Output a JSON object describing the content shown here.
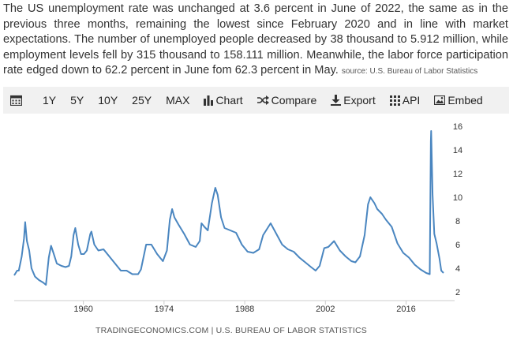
{
  "summary": {
    "text": "The US unemployment rate was unchanged at 3.6 percent in June of 2022, the same as in the previous three months, remaining the lowest since February 2020 and in line with market expectations. The number of unemployed people decreased by 38 thousand to 5.912 million, while employment levels fell by 315 thousand to 158.111 million. Meanwhile, the labor force participation rate edged down to 62.2 percent in June fom 62.3 percent in May.",
    "source": "source: U.S. Bureau of Labor Statistics"
  },
  "toolbar": {
    "calendar_icon": "calendar-icon",
    "ranges": [
      "1Y",
      "5Y",
      "10Y",
      "25Y",
      "MAX"
    ],
    "chart_label": "Chart",
    "compare_label": "Compare",
    "export_label": "Export",
    "api_label": "API",
    "embed_label": "Embed"
  },
  "credit": "TRADINGECONOMICS.COM | U.S. BUREAU OF LABOR STATISTICS",
  "colors": {
    "line": "#4a86c0",
    "axis": "#cccccc",
    "toolbar_bg": "#f1f1f1"
  },
  "chart_data": {
    "type": "line",
    "title": "",
    "xlabel": "",
    "ylabel": "",
    "x_ticks": [
      "1960",
      "1974",
      "1988",
      "2002",
      "2016"
    ],
    "y_ticks": [
      2,
      4,
      6,
      8,
      10,
      12,
      14,
      16
    ],
    "ylim": [
      2,
      16
    ],
    "xlim": [
      1948,
      2022.5
    ],
    "grid": false,
    "y_axis_side": "right",
    "series": [
      {
        "values": [
          [
            1948.0,
            3.4
          ],
          [
            1948.5,
            3.8
          ],
          [
            1948.8,
            3.8
          ],
          [
            1949.3,
            5.0
          ],
          [
            1949.7,
            6.5
          ],
          [
            1949.9,
            7.9
          ],
          [
            1950.2,
            6.3
          ],
          [
            1950.6,
            5.5
          ],
          [
            1951.0,
            4.0
          ],
          [
            1951.6,
            3.3
          ],
          [
            1952.3,
            3.0
          ],
          [
            1953.0,
            2.8
          ],
          [
            1953.5,
            2.6
          ],
          [
            1954.0,
            4.9
          ],
          [
            1954.4,
            5.9
          ],
          [
            1954.8,
            5.3
          ],
          [
            1955.4,
            4.4
          ],
          [
            1956.2,
            4.2
          ],
          [
            1956.9,
            4.1
          ],
          [
            1957.5,
            4.2
          ],
          [
            1957.9,
            5.0
          ],
          [
            1958.3,
            6.8
          ],
          [
            1958.6,
            7.4
          ],
          [
            1959.1,
            6.0
          ],
          [
            1959.6,
            5.2
          ],
          [
            1960.1,
            5.2
          ],
          [
            1960.6,
            5.5
          ],
          [
            1961.2,
            6.9
          ],
          [
            1961.4,
            7.1
          ],
          [
            1961.9,
            6.0
          ],
          [
            1962.6,
            5.5
          ],
          [
            1963.5,
            5.6
          ],
          [
            1964.5,
            5.0
          ],
          [
            1965.5,
            4.4
          ],
          [
            1966.5,
            3.8
          ],
          [
            1967.5,
            3.8
          ],
          [
            1968.5,
            3.5
          ],
          [
            1969.5,
            3.5
          ],
          [
            1970.0,
            3.9
          ],
          [
            1970.9,
            6.0
          ],
          [
            1971.8,
            6.0
          ],
          [
            1972.8,
            5.2
          ],
          [
            1973.8,
            4.6
          ],
          [
            1974.5,
            5.5
          ],
          [
            1975.0,
            8.1
          ],
          [
            1975.4,
            9.0
          ],
          [
            1975.8,
            8.3
          ],
          [
            1976.5,
            7.7
          ],
          [
            1977.5,
            6.9
          ],
          [
            1978.5,
            6.0
          ],
          [
            1979.5,
            5.8
          ],
          [
            1980.2,
            6.3
          ],
          [
            1980.5,
            7.8
          ],
          [
            1981.0,
            7.5
          ],
          [
            1981.6,
            7.2
          ],
          [
            1982.3,
            9.5
          ],
          [
            1982.9,
            10.8
          ],
          [
            1983.3,
            10.2
          ],
          [
            1983.9,
            8.3
          ],
          [
            1984.5,
            7.4
          ],
          [
            1985.5,
            7.2
          ],
          [
            1986.5,
            7.0
          ],
          [
            1987.5,
            6.0
          ],
          [
            1988.5,
            5.4
          ],
          [
            1989.5,
            5.3
          ],
          [
            1990.5,
            5.6
          ],
          [
            1991.2,
            6.8
          ],
          [
            1992.5,
            7.8
          ],
          [
            1993.5,
            6.9
          ],
          [
            1994.5,
            6.0
          ],
          [
            1995.5,
            5.6
          ],
          [
            1996.5,
            5.4
          ],
          [
            1997.5,
            4.9
          ],
          [
            1998.5,
            4.5
          ],
          [
            1999.5,
            4.1
          ],
          [
            2000.3,
            3.8
          ],
          [
            2001.0,
            4.2
          ],
          [
            2001.8,
            5.7
          ],
          [
            2002.5,
            5.8
          ],
          [
            2003.5,
            6.3
          ],
          [
            2004.5,
            5.5
          ],
          [
            2005.5,
            5.0
          ],
          [
            2006.5,
            4.6
          ],
          [
            2007.2,
            4.5
          ],
          [
            2008.0,
            5.0
          ],
          [
            2008.8,
            6.8
          ],
          [
            2009.4,
            9.4
          ],
          [
            2009.8,
            10.0
          ],
          [
            2010.5,
            9.5
          ],
          [
            2011.0,
            9.0
          ],
          [
            2011.8,
            8.6
          ],
          [
            2012.5,
            8.1
          ],
          [
            2013.5,
            7.5
          ],
          [
            2014.5,
            6.1
          ],
          [
            2015.5,
            5.3
          ],
          [
            2016.5,
            4.9
          ],
          [
            2017.5,
            4.3
          ],
          [
            2018.5,
            3.9
          ],
          [
            2019.5,
            3.6
          ],
          [
            2020.1,
            3.5
          ],
          [
            2020.3,
            14.7
          ],
          [
            2020.35,
            15.6
          ],
          [
            2020.6,
            10.2
          ],
          [
            2020.9,
            6.9
          ],
          [
            2021.3,
            6.1
          ],
          [
            2021.8,
            4.8
          ],
          [
            2022.1,
            3.8
          ],
          [
            2022.5,
            3.6
          ]
        ]
      }
    ]
  }
}
